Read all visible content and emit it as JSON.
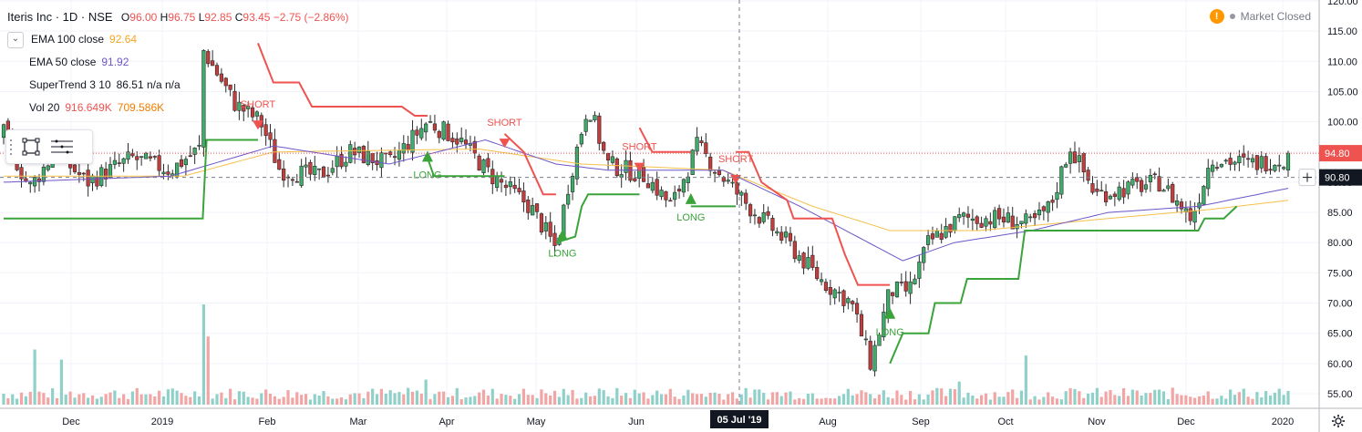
{
  "legend": {
    "symbol": "Iteris Inc · 1D · NSE",
    "ohlc": [
      {
        "label": "O",
        "value": "96.00"
      },
      {
        "label": "H",
        "value": "96.75"
      },
      {
        "label": "L",
        "value": "92.85"
      },
      {
        "label": "C",
        "value": "93.45"
      },
      {
        "label": "",
        "value": "−2.75 (−2.86%)"
      }
    ],
    "ema100": {
      "name": "EMA 100 close",
      "value": "92.64"
    },
    "ema50": {
      "name": "EMA 50 close",
      "value": "91.92"
    },
    "supertrend": {
      "name": "SuperTrend 3 10",
      "value": "86.51 n/a n/a"
    },
    "volume": {
      "name": "Vol 20",
      "value1": "916.649K",
      "value2": "709.586K"
    }
  },
  "market_status": "Market Closed",
  "icons": {
    "warning": "exclamation-icon",
    "settings": "gear-icon",
    "crosshair": "plus-icon"
  },
  "colors": {
    "up": "#26a69a",
    "up_candle": "#3cae6a",
    "down": "#ef5350",
    "down_candle": "#c43c3c",
    "ema100": "#f5c04a",
    "ema50": "#6e55c9",
    "st_up": "#3aa33a",
    "st_down": "#ef5350",
    "vol_up": "#8fd1c9",
    "vol_down": "#f2a5a5",
    "last_price": "#ef5350",
    "crosshair_price": "#131722"
  },
  "chart_data": {
    "type": "candlestick",
    "y_axis": {
      "min": 55,
      "max": 120,
      "ticks": [
        "55.00",
        "60.00",
        "65.00",
        "70.00",
        "75.00",
        "80.00",
        "85.00",
        "90.00",
        "95.00",
        "100.00",
        "105.00",
        "110.00",
        "115.00",
        "120.00"
      ]
    },
    "x_axis": {
      "labels": [
        "Dec",
        "2019",
        "Feb",
        "Mar",
        "Apr",
        "May",
        "Jun",
        "Aug",
        "Sep",
        "Oct",
        "Nov",
        "Dec",
        "2020"
      ]
    },
    "crosshair_date": "05 Jul '19",
    "last_price": "94.80",
    "crosshair_price": "90.80",
    "close_anchors": [
      {
        "t": 0,
        "v": 98
      },
      {
        "t": 0.02,
        "v": 89
      },
      {
        "t": 0.04,
        "v": 95
      },
      {
        "t": 0.065,
        "v": 90
      },
      {
        "t": 0.1,
        "v": 94
      },
      {
        "t": 0.13,
        "v": 92
      },
      {
        "t": 0.155,
        "v": 96
      },
      {
        "t": 0.155,
        "v": 112
      },
      {
        "t": 0.18,
        "v": 103
      },
      {
        "t": 0.2,
        "v": 100
      },
      {
        "t": 0.215,
        "v": 92
      },
      {
        "t": 0.245,
        "v": 91
      },
      {
        "t": 0.27,
        "v": 95
      },
      {
        "t": 0.3,
        "v": 93
      },
      {
        "t": 0.33,
        "v": 100
      },
      {
        "t": 0.355,
        "v": 97
      },
      {
        "t": 0.38,
        "v": 91
      },
      {
        "t": 0.41,
        "v": 86
      },
      {
        "t": 0.43,
        "v": 79
      },
      {
        "t": 0.44,
        "v": 90
      },
      {
        "t": 0.455,
        "v": 103
      },
      {
        "t": 0.47,
        "v": 93
      },
      {
        "t": 0.5,
        "v": 91
      },
      {
        "t": 0.52,
        "v": 86
      },
      {
        "t": 0.54,
        "v": 96
      },
      {
        "t": 0.555,
        "v": 92
      },
      {
        "t": 0.58,
        "v": 86
      },
      {
        "t": 0.61,
        "v": 80
      },
      {
        "t": 0.635,
        "v": 74
      },
      {
        "t": 0.66,
        "v": 70
      },
      {
        "t": 0.675,
        "v": 60
      },
      {
        "t": 0.69,
        "v": 72
      },
      {
        "t": 0.705,
        "v": 72
      },
      {
        "t": 0.72,
        "v": 80
      },
      {
        "t": 0.745,
        "v": 84
      },
      {
        "t": 0.775,
        "v": 84
      },
      {
        "t": 0.8,
        "v": 83
      },
      {
        "t": 0.815,
        "v": 86
      },
      {
        "t": 0.83,
        "v": 96
      },
      {
        "t": 0.85,
        "v": 88
      },
      {
        "t": 0.875,
        "v": 89
      },
      {
        "t": 0.9,
        "v": 90
      },
      {
        "t": 0.925,
        "v": 84
      },
      {
        "t": 0.94,
        "v": 94
      },
      {
        "t": 0.97,
        "v": 93
      },
      {
        "t": 1.0,
        "v": 94
      }
    ],
    "ema50_anchors": [
      {
        "t": 0,
        "v": 90
      },
      {
        "t": 0.13,
        "v": 91
      },
      {
        "t": 0.21,
        "v": 96
      },
      {
        "t": 0.3,
        "v": 93
      },
      {
        "t": 0.375,
        "v": 97
      },
      {
        "t": 0.43,
        "v": 93
      },
      {
        "t": 0.47,
        "v": 92
      },
      {
        "t": 0.56,
        "v": 92
      },
      {
        "t": 0.62,
        "v": 86
      },
      {
        "t": 0.7,
        "v": 77
      },
      {
        "t": 0.74,
        "v": 80
      },
      {
        "t": 0.8,
        "v": 82
      },
      {
        "t": 0.86,
        "v": 85
      },
      {
        "t": 0.93,
        "v": 86
      },
      {
        "t": 1.0,
        "v": 89
      }
    ],
    "ema100_anchors": [
      {
        "t": 0,
        "v": 91
      },
      {
        "t": 0.14,
        "v": 91
      },
      {
        "t": 0.21,
        "v": 95
      },
      {
        "t": 0.37,
        "v": 95.5
      },
      {
        "t": 0.45,
        "v": 93
      },
      {
        "t": 0.56,
        "v": 92
      },
      {
        "t": 0.63,
        "v": 86
      },
      {
        "t": 0.69,
        "v": 82
      },
      {
        "t": 0.76,
        "v": 82
      },
      {
        "t": 0.86,
        "v": 84
      },
      {
        "t": 0.94,
        "v": 85.5
      },
      {
        "t": 1.0,
        "v": 87
      }
    ],
    "supertrend_segments": [
      {
        "trend": "up",
        "points": [
          {
            "t": 0,
            "v": 84
          },
          {
            "t": 0.155,
            "v": 84
          },
          {
            "t": 0.158,
            "v": 97
          },
          {
            "t": 0.198,
            "v": 97
          }
        ]
      },
      {
        "trend": "down",
        "points": [
          {
            "t": 0.198,
            "v": 113
          },
          {
            "t": 0.21,
            "v": 106.5
          },
          {
            "t": 0.23,
            "v": 106.5
          },
          {
            "t": 0.24,
            "v": 102.5
          },
          {
            "t": 0.31,
            "v": 102.5
          },
          {
            "t": 0.32,
            "v": 101
          },
          {
            "t": 0.33,
            "v": 101
          }
        ]
      },
      {
        "trend": "up",
        "points": [
          {
            "t": 0.33,
            "v": 94
          },
          {
            "t": 0.335,
            "v": 91
          },
          {
            "t": 0.39,
            "v": 91
          }
        ]
      },
      {
        "trend": "down",
        "points": [
          {
            "t": 0.39,
            "v": 98
          },
          {
            "t": 0.405,
            "v": 95
          },
          {
            "t": 0.42,
            "v": 88
          },
          {
            "t": 0.43,
            "v": 88
          }
        ]
      },
      {
        "trend": "up",
        "points": [
          {
            "t": 0.43,
            "v": 80
          },
          {
            "t": 0.445,
            "v": 81
          },
          {
            "t": 0.45,
            "v": 86
          },
          {
            "t": 0.455,
            "v": 88
          },
          {
            "t": 0.495,
            "v": 88
          }
        ]
      },
      {
        "trend": "down",
        "points": [
          {
            "t": 0.495,
            "v": 99
          },
          {
            "t": 0.505,
            "v": 95
          },
          {
            "t": 0.535,
            "v": 95
          }
        ]
      },
      {
        "trend": "up",
        "points": [
          {
            "t": 0.535,
            "v": 86
          },
          {
            "t": 0.57,
            "v": 86
          }
        ]
      },
      {
        "trend": "down",
        "points": [
          {
            "t": 0.57,
            "v": 95
          },
          {
            "t": 0.58,
            "v": 95
          },
          {
            "t": 0.59,
            "v": 90
          },
          {
            "t": 0.61,
            "v": 87
          },
          {
            "t": 0.615,
            "v": 84
          },
          {
            "t": 0.645,
            "v": 84
          },
          {
            "t": 0.655,
            "v": 78
          },
          {
            "t": 0.665,
            "v": 73
          },
          {
            "t": 0.69,
            "v": 73
          }
        ]
      },
      {
        "trend": "up",
        "points": [
          {
            "t": 0.69,
            "v": 60
          },
          {
            "t": 0.7,
            "v": 65
          },
          {
            "t": 0.72,
            "v": 65
          },
          {
            "t": 0.725,
            "v": 70
          },
          {
            "t": 0.745,
            "v": 70
          },
          {
            "t": 0.75,
            "v": 74
          },
          {
            "t": 0.79,
            "v": 74
          },
          {
            "t": 0.795,
            "v": 82
          },
          {
            "t": 0.93,
            "v": 82
          },
          {
            "t": 0.935,
            "v": 84
          },
          {
            "t": 0.95,
            "v": 84
          },
          {
            "t": 0.96,
            "v": 86
          }
        ]
      }
    ],
    "signals": [
      {
        "label": "SHORT",
        "type": "short",
        "t": 0.198,
        "v": 99
      },
      {
        "label": "LONG",
        "type": "long",
        "t": 0.33,
        "v": 94
      },
      {
        "label": "SHORT",
        "type": "short",
        "t": 0.39,
        "v": 96
      },
      {
        "label": "LONG",
        "type": "long",
        "t": 0.435,
        "v": 81
      },
      {
        "label": "SHORT",
        "type": "short",
        "t": 0.495,
        "v": 92
      },
      {
        "label": "LONG",
        "type": "long",
        "t": 0.535,
        "v": 87
      },
      {
        "label": "SHORT",
        "type": "short",
        "t": 0.57,
        "v": 90
      },
      {
        "label": "LONG",
        "type": "long",
        "t": 0.69,
        "v": 68
      }
    ],
    "volume_spikes": [
      {
        "t": 0.025,
        "level": 0.55,
        "trend": "up"
      },
      {
        "t": 0.155,
        "level": 1.0,
        "trend": "up"
      },
      {
        "t": 0.16,
        "level": 0.68,
        "trend": "down"
      },
      {
        "t": 0.33,
        "level": 0.25,
        "trend": "up"
      },
      {
        "t": 0.795,
        "level": 0.49,
        "trend": "up"
      },
      {
        "t": 0.745,
        "level": 0.23,
        "trend": "up"
      },
      {
        "t": 0.045,
        "level": 0.45,
        "trend": "up"
      }
    ]
  }
}
